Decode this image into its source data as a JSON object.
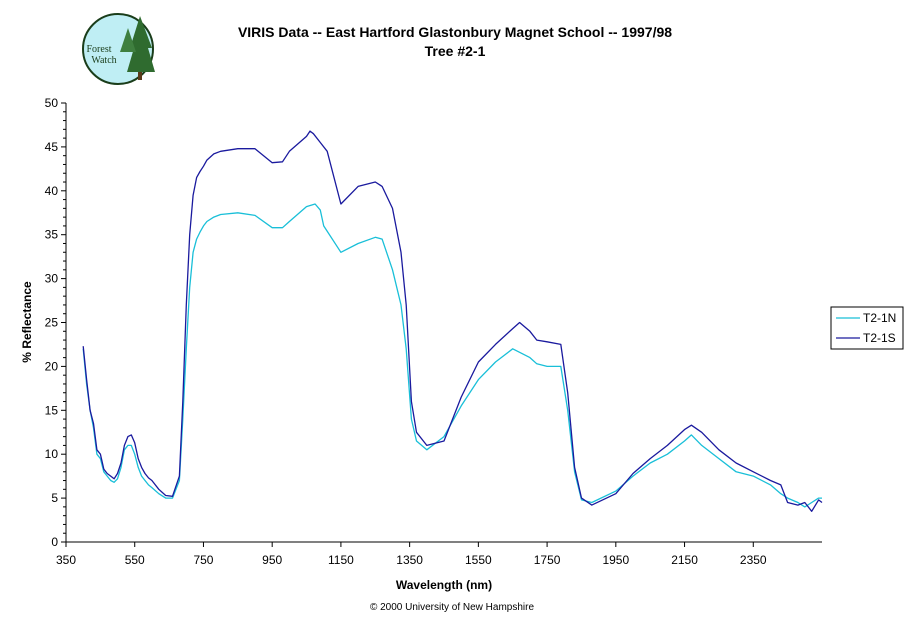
{
  "logo": {
    "line1": "Forest",
    "line2": "Watch"
  },
  "credit": "© 2000 University of New Hampshire",
  "colors": {
    "series_n": "#19bfd8",
    "series_s": "#1a1a9e",
    "axis": "#000000"
  },
  "chart_data": {
    "type": "line",
    "title": "VIRIS Data -- East Hartford Glastonbury Magnet School -- 1997/98",
    "subtitle": "Tree #2-1",
    "xlabel": "Wavelength (nm)",
    "ylabel": "% Reflectance",
    "xlim": [
      350,
      2550
    ],
    "ylim": [
      0,
      50
    ],
    "xticks": [
      350,
      550,
      750,
      950,
      1150,
      1350,
      1550,
      1750,
      1950,
      2150,
      2350
    ],
    "yticks": [
      0,
      5,
      10,
      15,
      20,
      25,
      30,
      35,
      40,
      45,
      50
    ],
    "legend_position": "right",
    "grid": false,
    "series": [
      {
        "name": "T2-1N",
        "color": "#19bfd8",
        "x": [
          400,
          410,
          420,
          430,
          440,
          450,
          460,
          470,
          480,
          490,
          500,
          510,
          520,
          530,
          540,
          550,
          560,
          570,
          580,
          590,
          600,
          620,
          640,
          660,
          680,
          690,
          700,
          710,
          720,
          730,
          740,
          750,
          760,
          780,
          800,
          850,
          900,
          950,
          980,
          1000,
          1050,
          1075,
          1090,
          1100,
          1150,
          1200,
          1250,
          1270,
          1300,
          1325,
          1340,
          1355,
          1370,
          1400,
          1450,
          1500,
          1550,
          1600,
          1650,
          1700,
          1720,
          1750,
          1790,
          1810,
          1830,
          1850,
          1880,
          1950,
          2000,
          2050,
          2100,
          2150,
          2170,
          2200,
          2250,
          2300,
          2350,
          2400,
          2430,
          2450,
          2480,
          2500,
          2520,
          2540,
          2550
        ],
        "y": [
          22,
          18,
          15,
          13,
          10,
          9.5,
          8,
          7.5,
          7,
          6.8,
          7.2,
          8.5,
          10.5,
          11,
          11,
          10,
          8.5,
          7.5,
          7,
          6.5,
          6.2,
          5.5,
          5,
          5,
          7,
          14,
          22,
          29,
          33,
          34.5,
          35.3,
          36,
          36.5,
          37,
          37.3,
          37.5,
          37.2,
          35.8,
          35.8,
          36.5,
          38.2,
          38.5,
          37.8,
          36,
          33,
          34,
          34.7,
          34.5,
          31,
          27,
          22,
          14,
          11.5,
          10.5,
          12,
          15.5,
          18.5,
          20.5,
          22,
          21,
          20.3,
          20,
          20,
          15,
          8,
          4.8,
          4.5,
          5.8,
          7.5,
          9,
          10,
          11.5,
          12.2,
          11,
          9.5,
          8,
          7.5,
          6.5,
          5.5,
          5,
          4.5,
          4,
          4.5,
          5,
          5
        ]
      },
      {
        "name": "T2-1S",
        "color": "#1a1a9e",
        "x": [
          400,
          410,
          420,
          430,
          440,
          450,
          460,
          470,
          480,
          490,
          500,
          510,
          520,
          530,
          540,
          550,
          560,
          570,
          580,
          590,
          600,
          620,
          640,
          660,
          680,
          690,
          700,
          710,
          720,
          730,
          740,
          750,
          760,
          780,
          800,
          850,
          900,
          950,
          980,
          1000,
          1050,
          1060,
          1070,
          1090,
          1110,
          1150,
          1200,
          1250,
          1270,
          1300,
          1325,
          1340,
          1355,
          1370,
          1400,
          1450,
          1500,
          1550,
          1600,
          1650,
          1670,
          1700,
          1720,
          1750,
          1790,
          1810,
          1830,
          1850,
          1880,
          1950,
          2000,
          2050,
          2100,
          2150,
          2170,
          2200,
          2250,
          2300,
          2350,
          2400,
          2430,
          2450,
          2480,
          2500,
          2520,
          2540,
          2550
        ],
        "y": [
          22.3,
          18.5,
          15,
          13.5,
          10.5,
          10,
          8.3,
          7.8,
          7.5,
          7.2,
          7.8,
          9,
          11,
          12,
          12.2,
          11.3,
          9.5,
          8.5,
          7.8,
          7.3,
          7,
          6,
          5.3,
          5.2,
          7.5,
          16,
          27,
          35,
          39.5,
          41.5,
          42.2,
          42.8,
          43.5,
          44.2,
          44.5,
          44.8,
          44.8,
          43.2,
          43.3,
          44.5,
          46.2,
          46.8,
          46.5,
          45.5,
          44.5,
          38.5,
          40.5,
          41,
          40.5,
          38,
          33,
          27,
          16,
          12.5,
          11,
          11.5,
          16.5,
          20.5,
          22.5,
          24.3,
          25,
          24,
          23,
          22.8,
          22.5,
          17,
          8.5,
          5,
          4.2,
          5.5,
          7.8,
          9.5,
          11,
          12.8,
          13.3,
          12.5,
          10.5,
          9,
          8,
          7,
          6.5,
          4.5,
          4.2,
          4.5,
          3.5,
          4.8,
          4.5
        ]
      }
    ]
  }
}
